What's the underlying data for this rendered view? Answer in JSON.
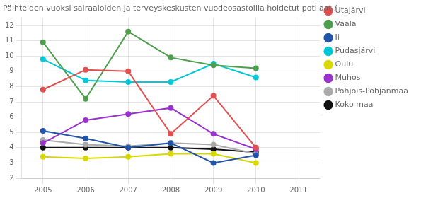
{
  "chart_data": {
    "type": "line",
    "title": "Päihteiden vuoksi sairaaloiden ja terveyskeskusten vuodeosastoilla hoidetut potilaat /",
    "x": [
      2005,
      2006,
      2007,
      2008,
      2009,
      2010
    ],
    "series": [
      {
        "name": "Utajärvi",
        "color": "#e05050",
        "values": [
          7.8,
          9.1,
          9.0,
          4.9,
          7.4,
          4.0
        ]
      },
      {
        "name": "Vaala",
        "color": "#4e9e4e",
        "values": [
          10.9,
          7.2,
          11.6,
          9.9,
          9.4,
          9.2
        ]
      },
      {
        "name": "Ii",
        "color": "#2255aa",
        "values": [
          5.1,
          4.6,
          4.0,
          4.3,
          3.0,
          3.5
        ]
      },
      {
        "name": "Pudasjärvi",
        "color": "#00c8d8",
        "values": [
          9.8,
          8.4,
          8.3,
          8.3,
          9.5,
          8.6
        ]
      },
      {
        "name": "Oulu",
        "color": "#d8d800",
        "values": [
          3.4,
          3.3,
          3.4,
          3.6,
          3.6,
          3.0
        ]
      },
      {
        "name": "Muhos",
        "color": "#9933cc",
        "values": [
          4.3,
          5.8,
          6.2,
          6.6,
          4.9,
          3.9
        ]
      },
      {
        "name": "Pohjois-Pohjanmaa",
        "color": "#aaaaaa",
        "values": [
          4.5,
          4.2,
          4.1,
          4.3,
          4.2,
          3.6
        ]
      },
      {
        "name": "Koko maa",
        "color": "#111111",
        "values": [
          4.0,
          4.0,
          4.0,
          4.0,
          3.9,
          3.7
        ]
      }
    ],
    "xlim": [
      2004.5,
      2011.5
    ],
    "xticks": [
      2005,
      2006,
      2007,
      2008,
      2009,
      2010,
      2011
    ],
    "ylim": [
      2,
      12.5
    ],
    "yticks": [
      2,
      3,
      4,
      5,
      6,
      7,
      8,
      9,
      10,
      11,
      12
    ],
    "grid": true,
    "legend": "right",
    "marker": "circle",
    "line_style": "solid"
  }
}
